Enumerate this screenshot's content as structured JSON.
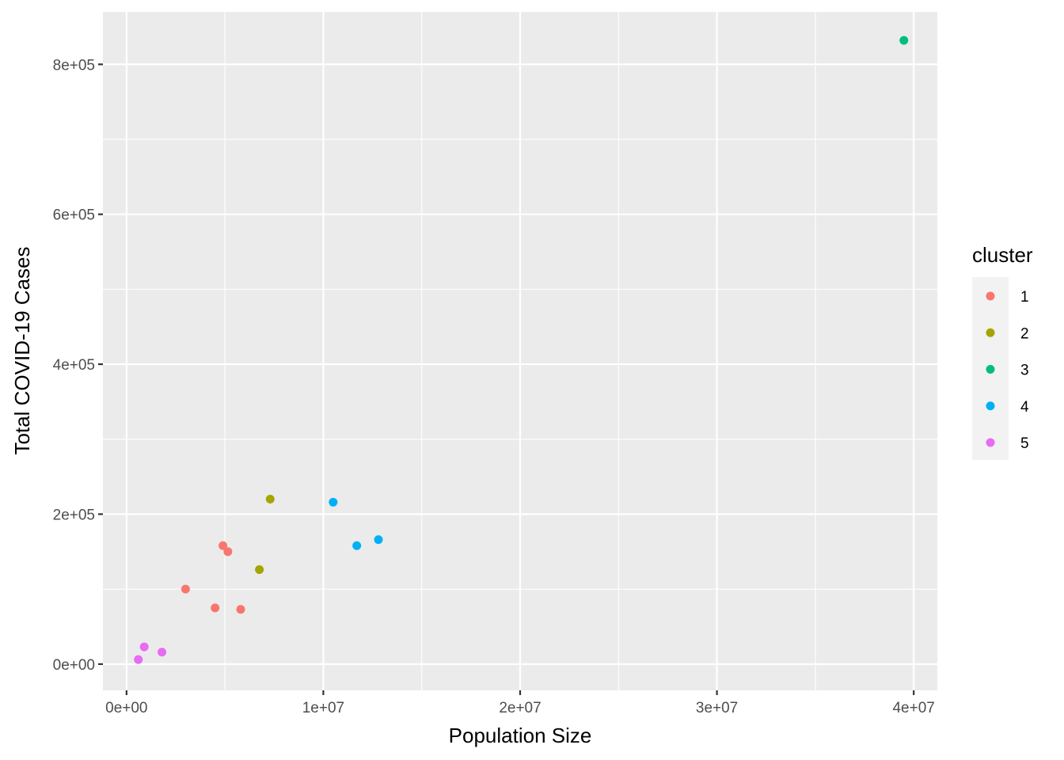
{
  "chart_data": {
    "type": "scatter",
    "title": "",
    "xlabel": "Population Size",
    "ylabel": "Total COVID-19 Cases",
    "xlim": [
      -1200000,
      41200000
    ],
    "ylim": [
      -35000,
      870000
    ],
    "x_ticks": [
      {
        "value": 0,
        "label": "0e+00"
      },
      {
        "value": 10000000,
        "label": "1e+07"
      },
      {
        "value": 20000000,
        "label": "2e+07"
      },
      {
        "value": 30000000,
        "label": "3e+07"
      },
      {
        "value": 40000000,
        "label": "4e+07"
      }
    ],
    "y_ticks": [
      {
        "value": 0,
        "label": "0e+00"
      },
      {
        "value": 200000,
        "label": "2e+05"
      },
      {
        "value": 400000,
        "label": "4e+05"
      },
      {
        "value": 600000,
        "label": "6e+05"
      },
      {
        "value": 800000,
        "label": "8e+05"
      }
    ],
    "grid": true,
    "legend": {
      "title": "cluster",
      "position": "right"
    },
    "series": [
      {
        "name": "1",
        "color": "#F8766D",
        "points": [
          {
            "x": 3000000,
            "y": 100000
          },
          {
            "x": 4500000,
            "y": 75000
          },
          {
            "x": 4900000,
            "y": 158000
          },
          {
            "x": 5150000,
            "y": 150000
          },
          {
            "x": 5800000,
            "y": 73000
          }
        ]
      },
      {
        "name": "2",
        "color": "#A3A500",
        "points": [
          {
            "x": 6750000,
            "y": 126000
          },
          {
            "x": 7300000,
            "y": 220000
          }
        ]
      },
      {
        "name": "3",
        "color": "#00BF7D",
        "points": [
          {
            "x": 39500000,
            "y": 832000
          }
        ]
      },
      {
        "name": "4",
        "color": "#00B0F6",
        "points": [
          {
            "x": 10500000,
            "y": 216000
          },
          {
            "x": 11700000,
            "y": 158000
          },
          {
            "x": 12800000,
            "y": 166000
          }
        ]
      },
      {
        "name": "5",
        "color": "#E76BF3",
        "points": [
          {
            "x": 600000,
            "y": 6000
          },
          {
            "x": 900000,
            "y": 23000
          },
          {
            "x": 1800000,
            "y": 16000
          }
        ]
      }
    ]
  }
}
